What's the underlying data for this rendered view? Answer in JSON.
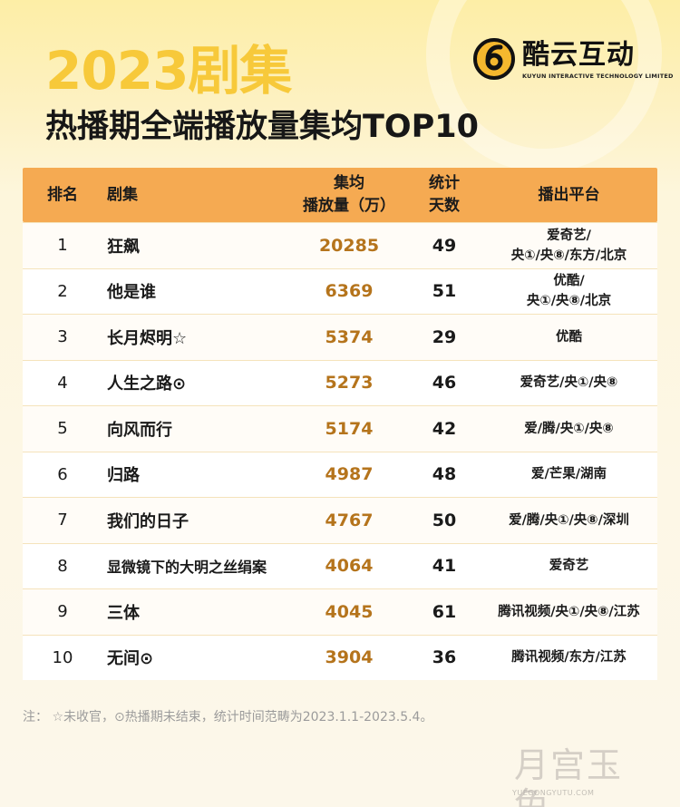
{
  "header": {
    "year_title": "2023剧集",
    "subtitle": "热播期全端播放量集均TOP10"
  },
  "logo": {
    "name": "酷云互动",
    "english": "KUYUN INTERACTIVE TECHNOLOGY LIMITED",
    "icon": "kuyun-logo-icon"
  },
  "table": {
    "columns": {
      "rank": "排名",
      "name": "剧集",
      "plays_line1": "集均",
      "plays_line2": "播放量（万）",
      "days_line1": "统计",
      "days_line2": "天数",
      "platform": "播出平台"
    },
    "rows": [
      {
        "rank": "1",
        "name": "狂飙",
        "plays": "20285",
        "days": "49",
        "platform": "爱奇艺/\n央①/央⑧/东方/北京"
      },
      {
        "rank": "2",
        "name": "他是谁",
        "plays": "6369",
        "days": "51",
        "platform": "优酷/\n央①/央⑧/北京"
      },
      {
        "rank": "3",
        "name": "长月烬明☆",
        "plays": "5374",
        "days": "29",
        "platform": "优酷"
      },
      {
        "rank": "4",
        "name": "人生之路⊙",
        "plays": "5273",
        "days": "46",
        "platform": "爱奇艺/央①/央⑧"
      },
      {
        "rank": "5",
        "name": "向风而行",
        "plays": "5174",
        "days": "42",
        "platform": "爱/腾/央①/央⑧"
      },
      {
        "rank": "6",
        "name": "归路",
        "plays": "4987",
        "days": "48",
        "platform": "爱/芒果/湖南"
      },
      {
        "rank": "7",
        "name": "我们的日子",
        "plays": "4767",
        "days": "50",
        "platform": "爱/腾/央①/央⑧/深圳"
      },
      {
        "rank": "8",
        "name": "显微镜下的大明之丝绢案",
        "plays": "4064",
        "days": "41",
        "platform": "爱奇艺"
      },
      {
        "rank": "9",
        "name": "三体",
        "plays": "4045",
        "days": "61",
        "platform": "腾讯视频/央①/央⑧/江苏"
      },
      {
        "rank": "10",
        "name": "无间⊙",
        "plays": "3904",
        "days": "36",
        "platform": "腾讯视频/东方/江苏"
      }
    ]
  },
  "note": "注：  ☆未收官，⊙热播期未结束，统计时间范畴为2023.1.1-2023.5.4。",
  "watermark": {
    "text": "月宫玉兔",
    "url": "YUEGONGYUTU.COM"
  },
  "colors": {
    "header_bg": "#f5aa52",
    "year_title": "#f7c93a",
    "plays_value": "#b5741c",
    "note": "#9b9b9b"
  }
}
